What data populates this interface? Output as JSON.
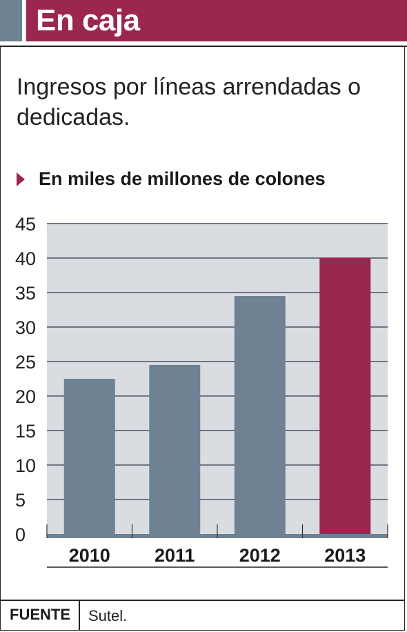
{
  "header": {
    "title": "En caja"
  },
  "subtitle": "Ingresos por líneas arrendadas o dedicadas.",
  "unit_label": "En miles de millones de colones",
  "footer": {
    "source_label": "FUENTE",
    "source_value": "Sutel."
  },
  "colors": {
    "accent": "#9b2650",
    "bar": "#6f8294",
    "plot_bg": "#d9dde1",
    "grid": "#4a5560"
  },
  "chart_data": {
    "type": "bar",
    "categories": [
      "2010",
      "2011",
      "2012",
      "2013"
    ],
    "values": [
      22.5,
      24.5,
      34.5,
      40
    ],
    "highlight_index": 3,
    "ylim": [
      0,
      45
    ],
    "yticks": [
      0,
      5,
      10,
      15,
      20,
      25,
      30,
      35,
      40,
      45
    ],
    "title": "Ingresos por líneas arrendadas o dedicadas.",
    "ylabel": "En miles de millones de colones",
    "xlabel": "",
    "grid": true
  }
}
